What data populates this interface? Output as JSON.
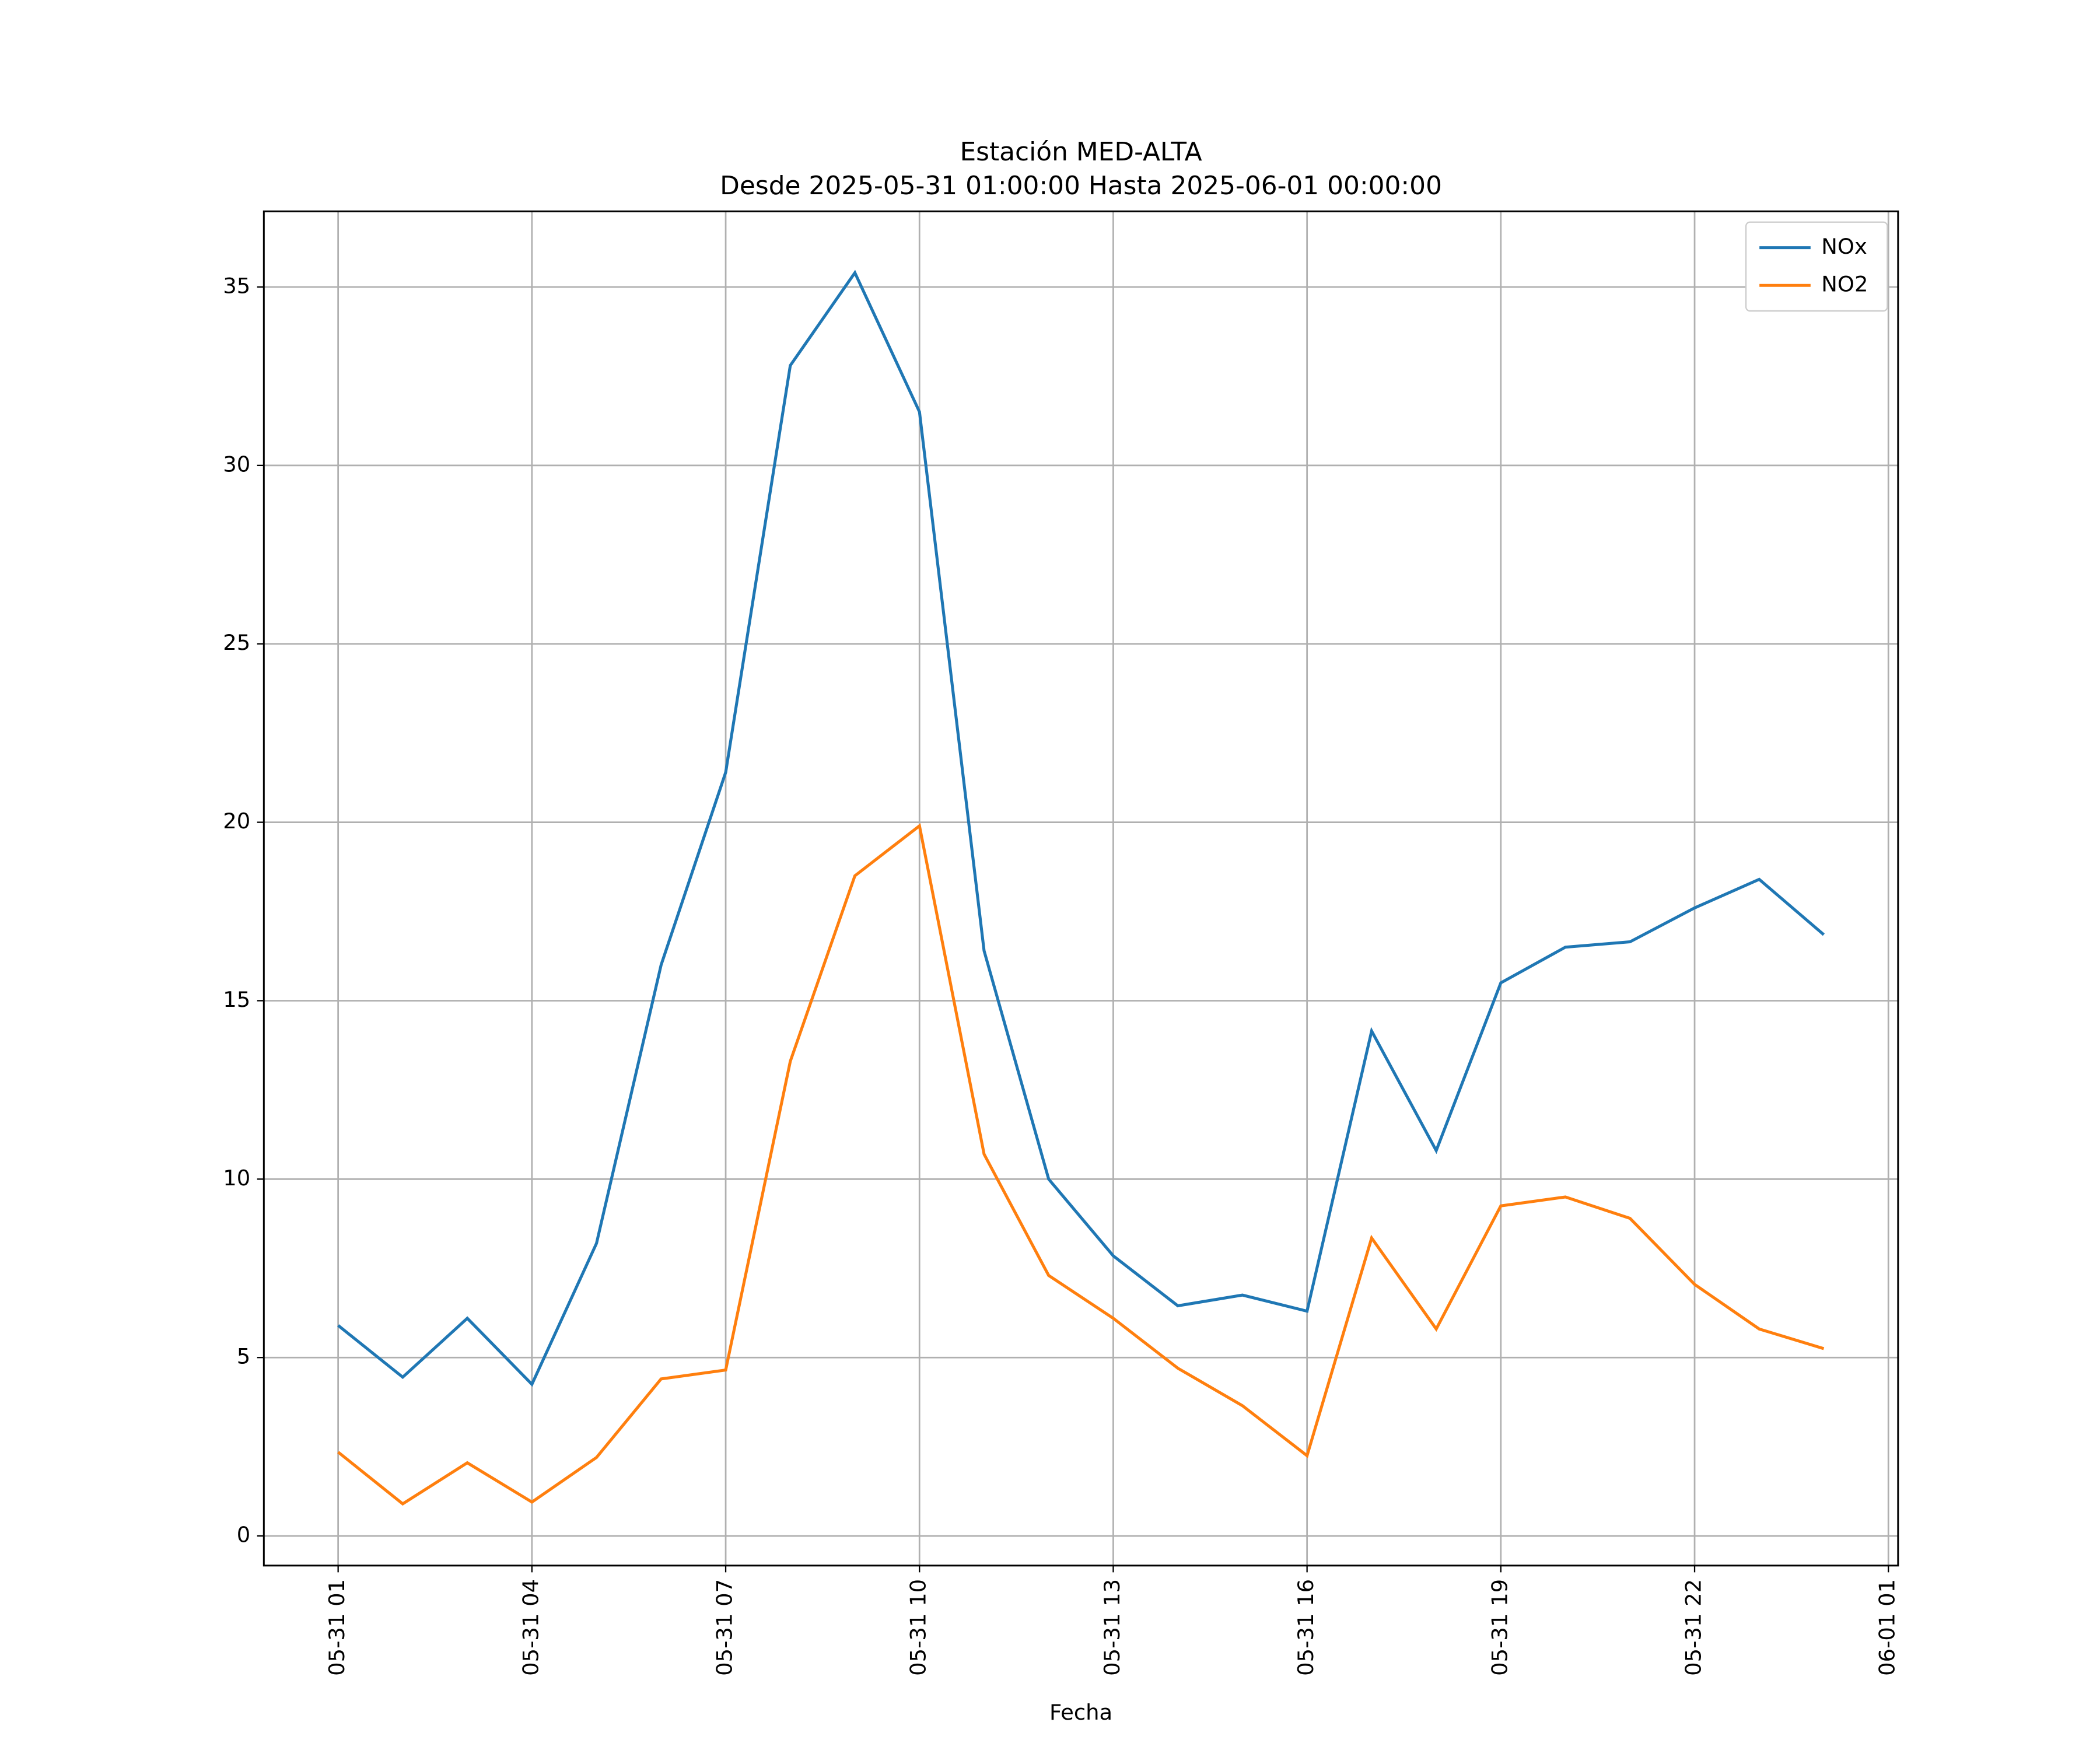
{
  "chart_data": {
    "type": "line",
    "title": "Estación MED-ALTA",
    "subtitle": "Desde 2025-05-31 01:00:00 Hasta 2025-06-01 00:00:00",
    "x_label": "Fecha",
    "x": [
      "05-31 01",
      "05-31 02",
      "05-31 03",
      "05-31 04",
      "05-31 05",
      "05-31 06",
      "05-31 07",
      "05-31 08",
      "05-31 09",
      "05-31 10",
      "05-31 11",
      "05-31 12",
      "05-31 13",
      "05-31 14",
      "05-31 15",
      "05-31 16",
      "05-31 17",
      "05-31 18",
      "05-31 19",
      "05-31 20",
      "05-31 21",
      "05-31 22",
      "05-31 23",
      "06-01 00"
    ],
    "series": [
      {
        "name": "NOx",
        "color": "#1f77b4",
        "values": [
          5.9,
          4.45,
          6.1,
          4.25,
          8.2,
          16.0,
          21.4,
          32.8,
          35.4,
          31.5,
          16.4,
          10.0,
          7.85,
          6.45,
          6.75,
          6.3,
          14.15,
          10.8,
          15.5,
          16.5,
          16.65,
          17.6,
          18.4,
          16.85
        ]
      },
      {
        "name": "NO2",
        "color": "#ff7f0e",
        "values": [
          2.35,
          0.9,
          2.05,
          0.95,
          2.2,
          4.4,
          4.65,
          13.3,
          18.5,
          19.9,
          10.7,
          7.3,
          6.1,
          4.7,
          3.65,
          2.25,
          8.35,
          5.8,
          9.25,
          9.5,
          8.9,
          7.05,
          5.8,
          5.25
        ]
      }
    ],
    "xlim": [
      "05-30 23:51",
      "06-01 01:09"
    ],
    "xticks": [
      "05-31 01",
      "05-31 04",
      "05-31 07",
      "05-31 10",
      "05-31 13",
      "05-31 16",
      "05-31 19",
      "05-31 22",
      "06-01 01"
    ],
    "ylim": [
      -0.83,
      37.12
    ],
    "yticks": [
      0,
      5,
      10,
      15,
      20,
      25,
      30,
      35
    ],
    "grid": true,
    "legend": "upper-right"
  }
}
